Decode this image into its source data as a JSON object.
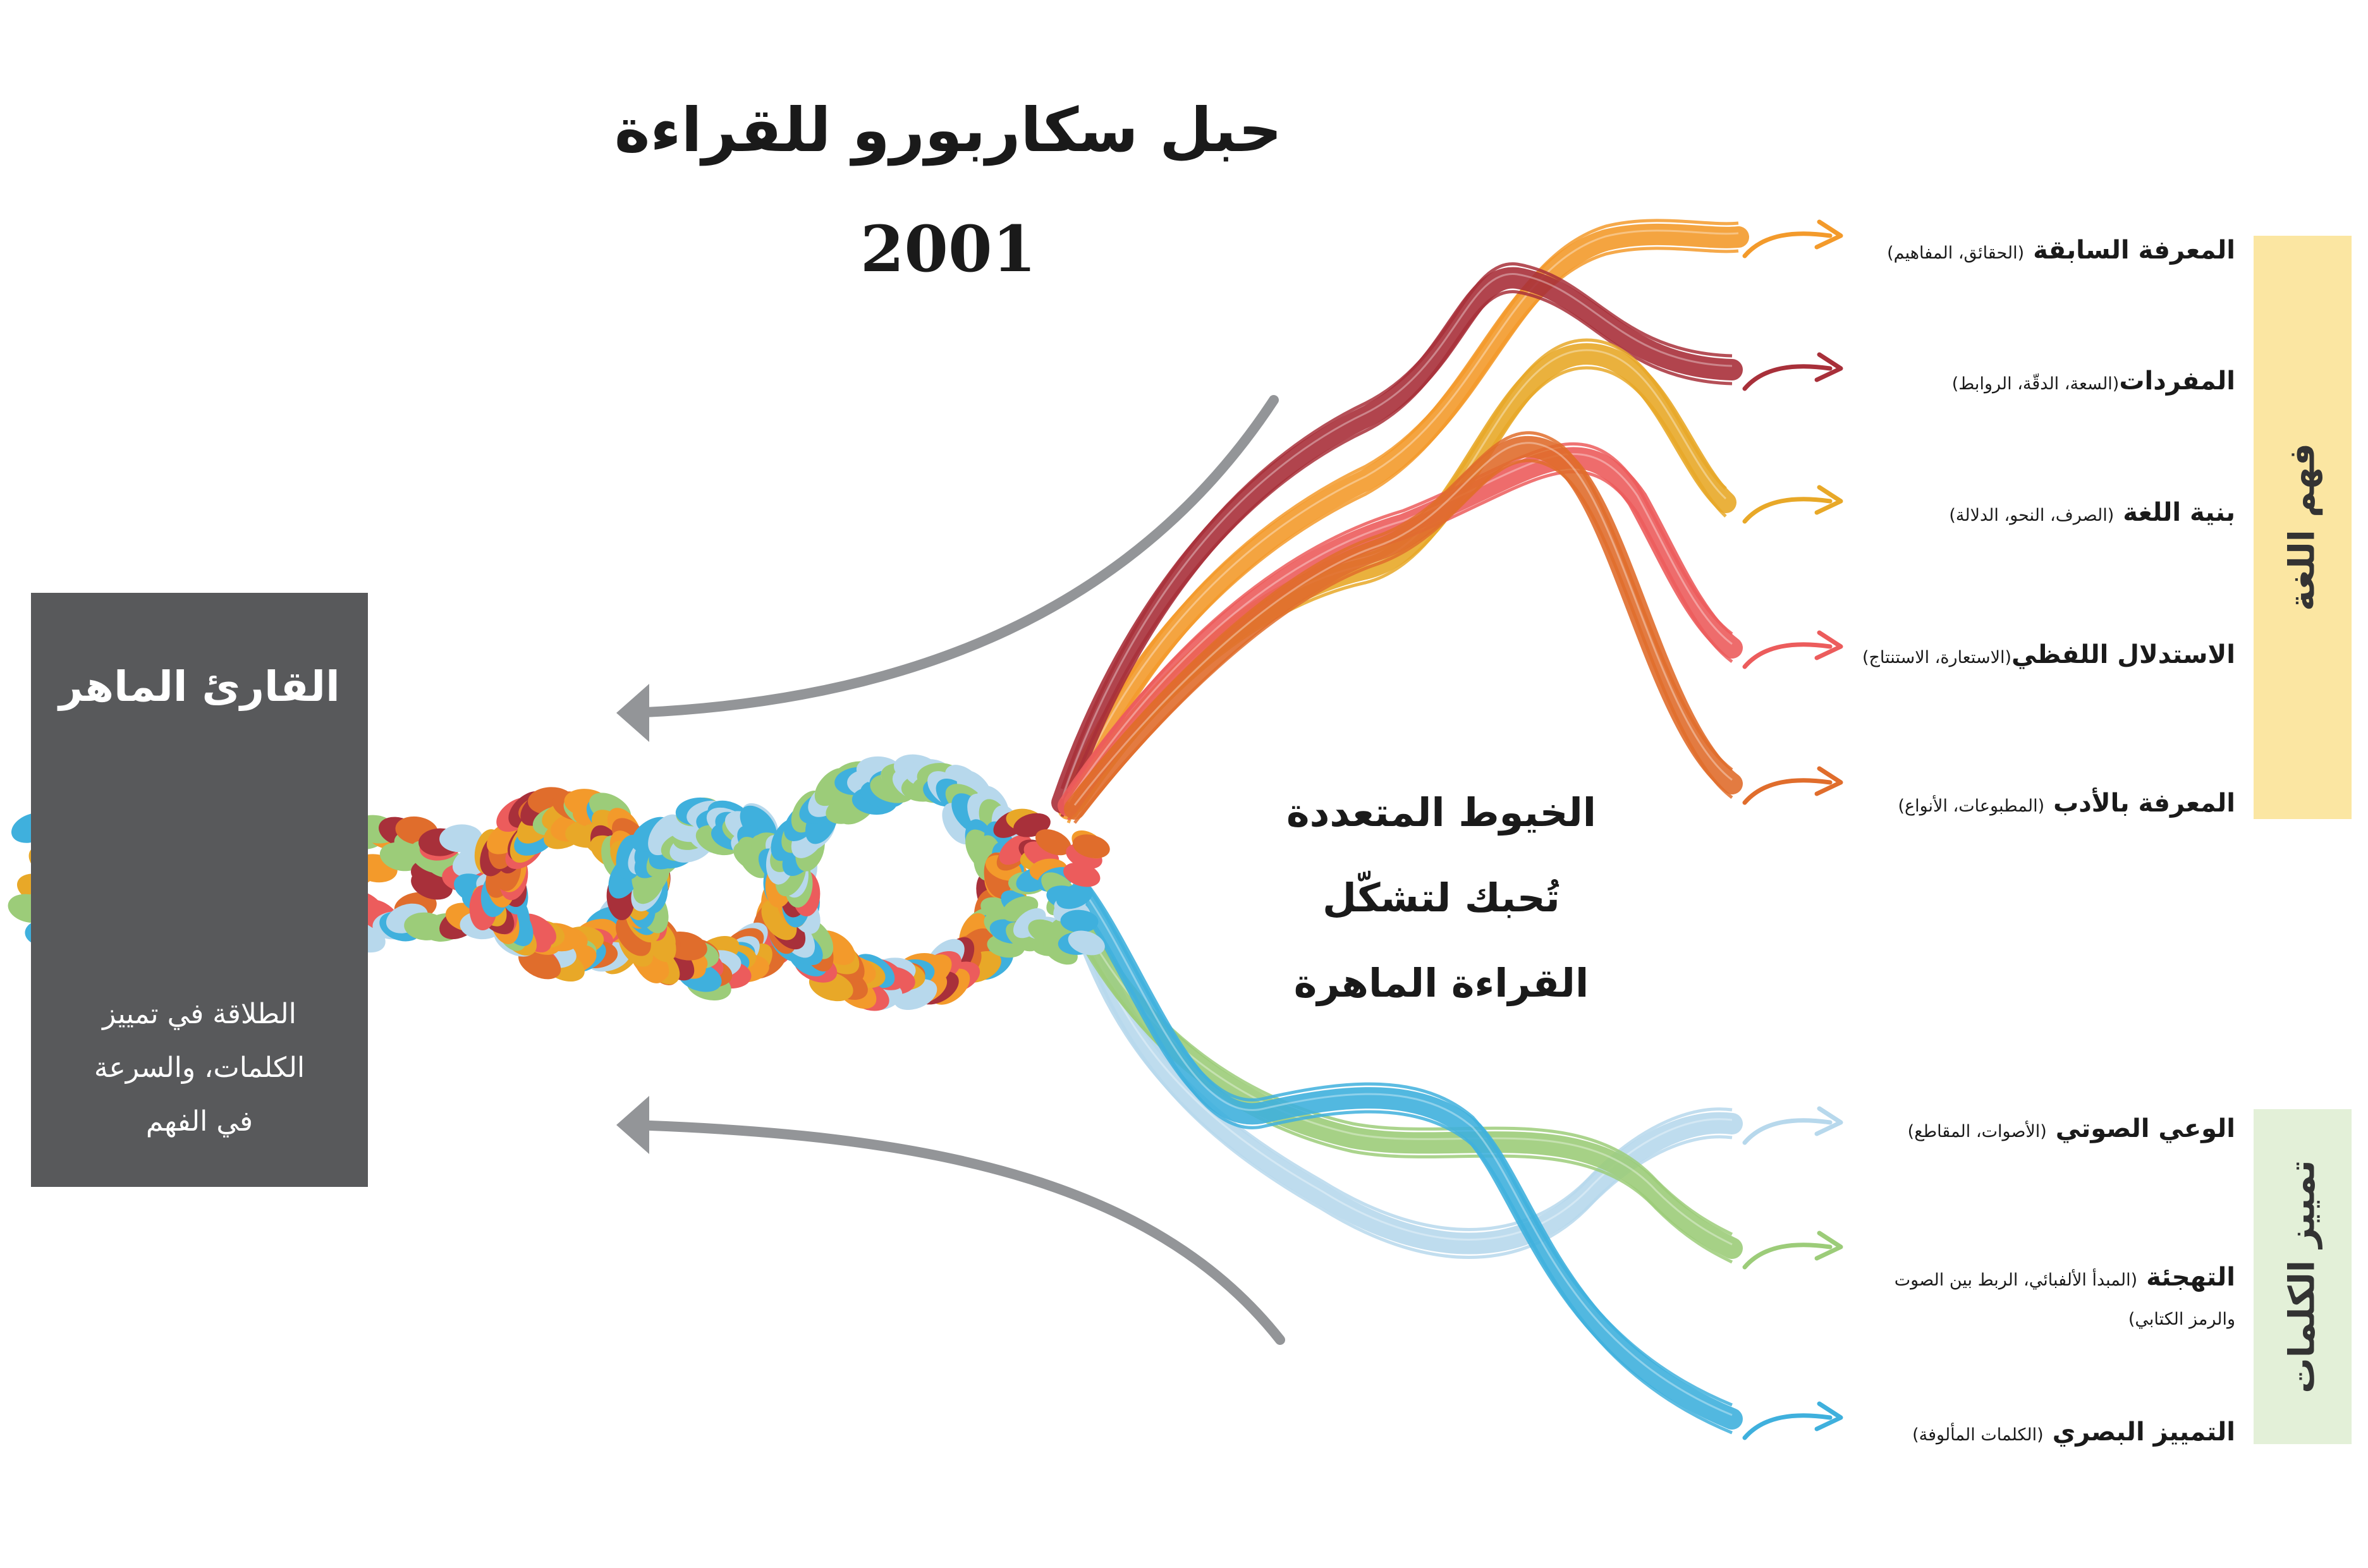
{
  "title": "حبل سكاربورو للقراءة",
  "year": "2001",
  "center_text": [
    "الخيوط المتعددة",
    "تُحبك لتشكّل",
    "القراءة الماهرة"
  ],
  "reader_box": {
    "title": "القارئ الماهر",
    "text": [
      "الطلاقة في تمييز",
      "الكلمات، والسرعة",
      "في الفهم"
    ]
  },
  "groups": [
    {
      "label": "فهم اللغة",
      "color": "#fbe6a2"
    },
    {
      "label": "تمييز الكلمات",
      "color": "#e3f0d8"
    }
  ],
  "strands": [
    {
      "name": "المعرفة السابقة",
      "detail": "(الحقائق، المفاهيم)",
      "color": "#f39a2b"
    },
    {
      "name": "المفردات",
      "detail": "(السعة، الدقّة، الروابط)",
      "color": "#a8303a"
    },
    {
      "name": "بنية اللغة",
      "detail": "(الصرف، النحو، الدلالة)",
      "color": "#e8a828"
    },
    {
      "name": "الاستدلال اللفظي",
      "detail": "(الاستعارة، الاستنتاج)",
      "color": "#ec5c5c"
    },
    {
      "name": "المعرفة بالأدب",
      "detail": "(المطبوعات، الأنواع)",
      "color": "#e06d2c"
    },
    {
      "name": "الوعي الصوتي",
      "detail": "(الأصوات، المقاطع)",
      "color": "#b7d8ec"
    },
    {
      "name": "التهجئة",
      "detail": "(المبدأ الألفبائي، الربط بين الصوت",
      "detail2": "والرمز الكتابي)",
      "color": "#9ccc79"
    },
    {
      "name": "التمييز البصري",
      "detail": "(الكلمات المألوفة)",
      "color": "#3fb0dd"
    }
  ],
  "arrow_color": "#939598"
}
